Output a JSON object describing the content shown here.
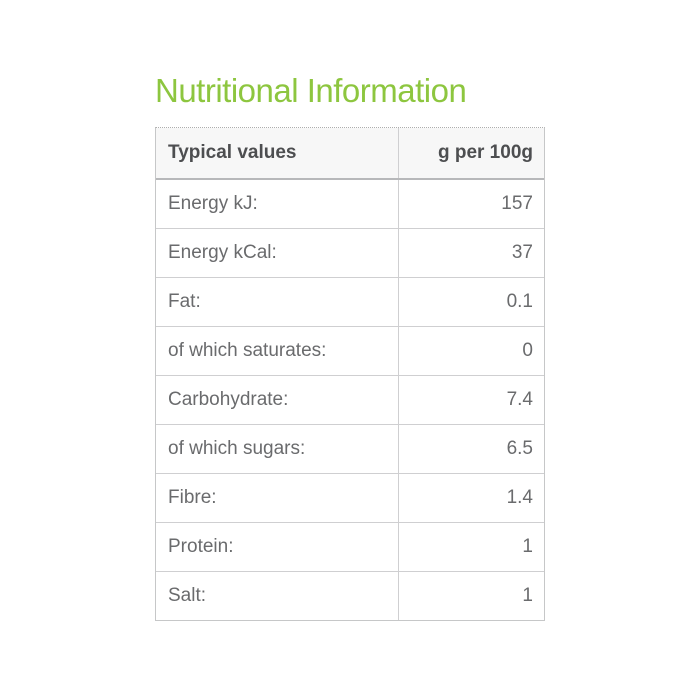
{
  "page": {
    "title": "Nutritional Information"
  },
  "table": {
    "headers": {
      "label_col": "Typical values",
      "value_col": "g per 100g"
    },
    "rows": [
      {
        "label": "Energy kJ:",
        "value": "157"
      },
      {
        "label": "Energy kCal:",
        "value": "37"
      },
      {
        "label": "Fat:",
        "value": "0.1"
      },
      {
        "label": "of which saturates:",
        "value": "0"
      },
      {
        "label": "Carbohydrate:",
        "value": "7.4"
      },
      {
        "label": "of which sugars:",
        "value": "6.5"
      },
      {
        "label": "Fibre:",
        "value": "1.4"
      },
      {
        "label": "Protein:",
        "value": "1"
      },
      {
        "label": "Salt:",
        "value": "1"
      }
    ]
  },
  "colors": {
    "title_green": "#8dc63f",
    "header_text": "#4d4e50",
    "body_text": "#6a6b6d",
    "header_bg": "#f7f7f7",
    "border": "#cfcfd1",
    "outer_border": "#c6c7c8"
  }
}
